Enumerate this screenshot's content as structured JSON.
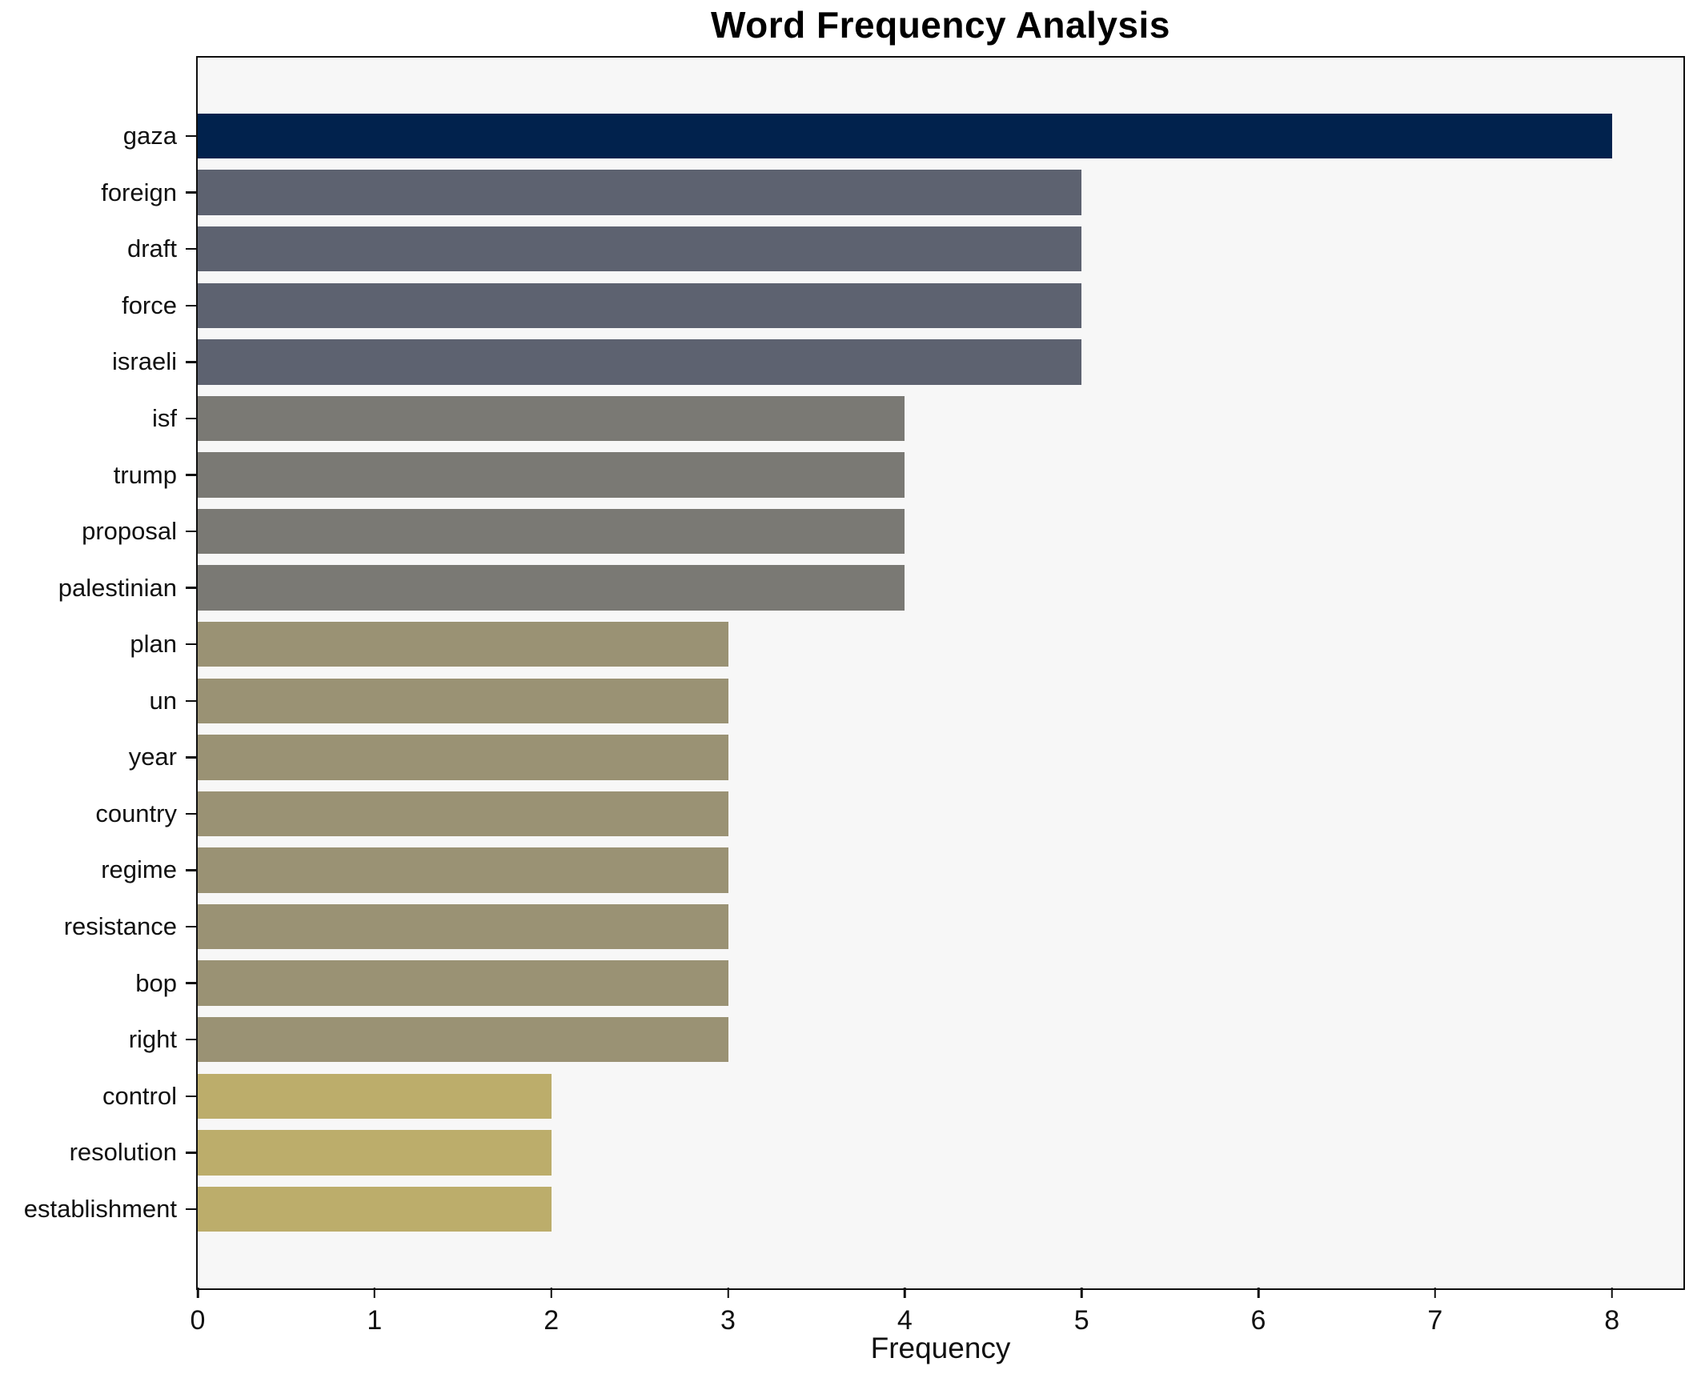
{
  "chart_data": {
    "type": "bar",
    "orientation": "horizontal",
    "title": "Word Frequency Analysis",
    "xlabel": "Frequency",
    "ylabel": "",
    "categories": [
      "gaza",
      "foreign",
      "draft",
      "force",
      "israeli",
      "isf",
      "trump",
      "proposal",
      "palestinian",
      "plan",
      "un",
      "year",
      "country",
      "regime",
      "resistance",
      "bop",
      "right",
      "control",
      "resolution",
      "establishment"
    ],
    "values": [
      8,
      5,
      5,
      5,
      5,
      4,
      4,
      4,
      4,
      3,
      3,
      3,
      3,
      3,
      3,
      3,
      3,
      2,
      2,
      2
    ],
    "bar_colors": [
      "#01224d",
      "#5d6270",
      "#5d6270",
      "#5d6270",
      "#5d6270",
      "#7a7974",
      "#7a7974",
      "#7a7974",
      "#7a7974",
      "#9a9274",
      "#9a9274",
      "#9a9274",
      "#9a9274",
      "#9a9274",
      "#9a9274",
      "#9a9274",
      "#9a9274",
      "#bcad6b",
      "#bcad6b",
      "#bcad6b"
    ],
    "x_ticks": [
      0,
      1,
      2,
      3,
      4,
      5,
      6,
      7,
      8
    ],
    "xlim": [
      0,
      8.4
    ],
    "grid": false,
    "legend": null,
    "plot_background": "#f7f7f7",
    "figure_background": "#ffffff",
    "spine_color": "#0f0f0f"
  }
}
